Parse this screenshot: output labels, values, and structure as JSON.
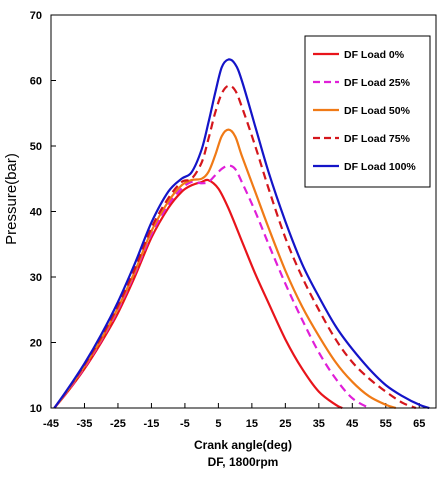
{
  "chart_data": {
    "type": "line",
    "title": "",
    "xlabel": "Crank angle(deg)",
    "xlabel2": "DF, 1800rpm",
    "ylabel": "Pressure(bar)",
    "xlim": [
      -45,
      70
    ],
    "ylim": [
      10,
      70
    ],
    "xticks": [
      -45,
      -35,
      -25,
      -15,
      -5,
      5,
      15,
      25,
      35,
      45,
      55,
      65
    ],
    "yticks": [
      10,
      20,
      30,
      40,
      50,
      60,
      70
    ],
    "grid": false,
    "legend_position": "top-right",
    "series": [
      {
        "name": "DF Load 0%",
        "color": "#e8141b",
        "dash": "solid",
        "x": [
          -44,
          -40,
          -35,
          -30,
          -25,
          -20,
          -15,
          -10,
          -6,
          -3,
          0,
          2,
          5,
          8,
          12,
          16,
          20,
          25,
          30,
          35,
          40,
          42
        ],
        "y": [
          10,
          12.5,
          16,
          20,
          24.5,
          30,
          36,
          40.5,
          43,
          44,
          44.5,
          44.8,
          43.5,
          40.5,
          35.5,
          30.5,
          26,
          20.5,
          16,
          12.5,
          10.5,
          10
        ]
      },
      {
        "name": "DF Load 25%",
        "color": "#e01fd8",
        "dash": "dash",
        "x": [
          -44,
          -40,
          -35,
          -30,
          -25,
          -20,
          -15,
          -10,
          -6,
          -3,
          0,
          2,
          4,
          6,
          8,
          10,
          12,
          16,
          20,
          25,
          30,
          35,
          40,
          45,
          50
        ],
        "y": [
          10,
          12.6,
          16.2,
          20.3,
          25,
          30.5,
          36.5,
          41,
          43.5,
          44.5,
          44.3,
          44.5,
          45.5,
          46.5,
          47,
          46.5,
          44.5,
          40,
          35,
          29,
          23.5,
          18.5,
          14.5,
          11.5,
          10
        ]
      },
      {
        "name": "DF Load 50%",
        "color": "#f07a16",
        "dash": "solid",
        "x": [
          -44,
          -40,
          -35,
          -30,
          -25,
          -20,
          -15,
          -10,
          -6,
          -3,
          0,
          2,
          4,
          6,
          8,
          10,
          12,
          16,
          20,
          25,
          30,
          35,
          40,
          45,
          50,
          55,
          58
        ],
        "y": [
          10,
          12.7,
          16.4,
          20.5,
          25.3,
          30.8,
          37,
          41.5,
          44,
          44.8,
          45,
          46,
          48.5,
          51.5,
          52.5,
          51.5,
          48.5,
          43,
          37.5,
          31,
          25.5,
          21,
          17,
          14,
          11.8,
          10.5,
          10
        ]
      },
      {
        "name": "DF Load 75%",
        "color": "#d4161c",
        "dash": "dash",
        "x": [
          -44,
          -40,
          -35,
          -30,
          -25,
          -20,
          -15,
          -10,
          -6,
          -3,
          0,
          2,
          4,
          6,
          8,
          10,
          12,
          16,
          20,
          25,
          30,
          35,
          40,
          45,
          50,
          55,
          60,
          64
        ],
        "y": [
          10,
          12.8,
          16.6,
          20.8,
          25.6,
          31.2,
          37.5,
          42,
          44.5,
          45,
          47.5,
          51,
          55,
          58,
          59.2,
          58.5,
          56,
          50,
          43.5,
          36,
          30,
          25,
          20.5,
          17,
          14.5,
          12.5,
          10.8,
          10
        ]
      },
      {
        "name": "DF Load 100%",
        "color": "#1414c8",
        "dash": "solid",
        "x": [
          -44,
          -40,
          -35,
          -30,
          -25,
          -20,
          -15,
          -10,
          -6,
          -3,
          0,
          2,
          4,
          6,
          8,
          10,
          12,
          16,
          20,
          25,
          30,
          35,
          40,
          45,
          50,
          55,
          60,
          65,
          68
        ],
        "y": [
          10,
          12.9,
          16.8,
          21.2,
          26.2,
          32,
          38.3,
          43,
          45,
          46,
          49.5,
          53.5,
          58,
          62,
          63.2,
          62.5,
          60,
          53,
          46,
          38.5,
          32,
          27,
          22.5,
          19,
          16,
          13.5,
          11.8,
          10.5,
          10
        ]
      }
    ]
  }
}
